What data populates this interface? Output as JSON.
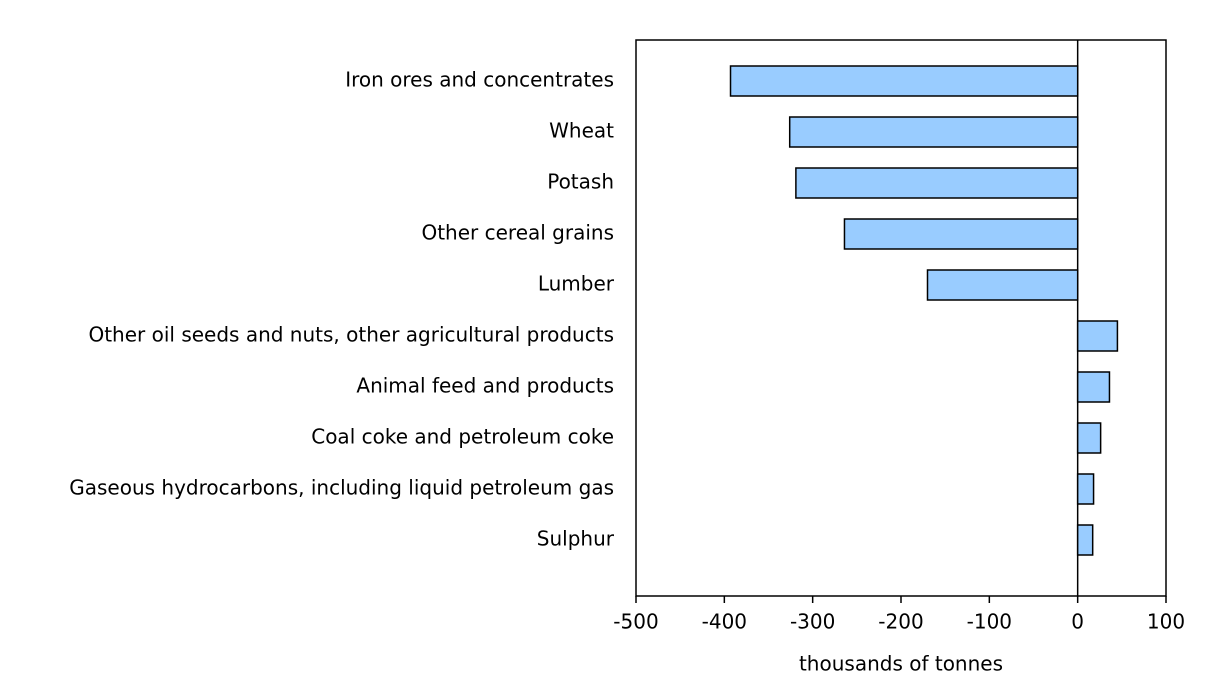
{
  "chart_data": {
    "type": "bar",
    "x_label": "thousands of tonnes",
    "categories": [
      "Iron ores and concentrates",
      "Wheat",
      "Potash",
      "Other cereal grains",
      "Lumber",
      "Other oil seeds and nuts, other agricultural products",
      "Animal feed and products",
      "Coal coke and petroleum coke",
      "Gaseous hydrocarbons, including liquid petroleum gas",
      "Sulphur"
    ],
    "values": [
      -393,
      -326,
      -319,
      -264,
      -170,
      45,
      36,
      26,
      18,
      17
    ],
    "color": "#99ccff",
    "xlim": [
      -500,
      100
    ],
    "xticks": [
      -500,
      -400,
      -300,
      -200,
      -100,
      0,
      100
    ]
  }
}
